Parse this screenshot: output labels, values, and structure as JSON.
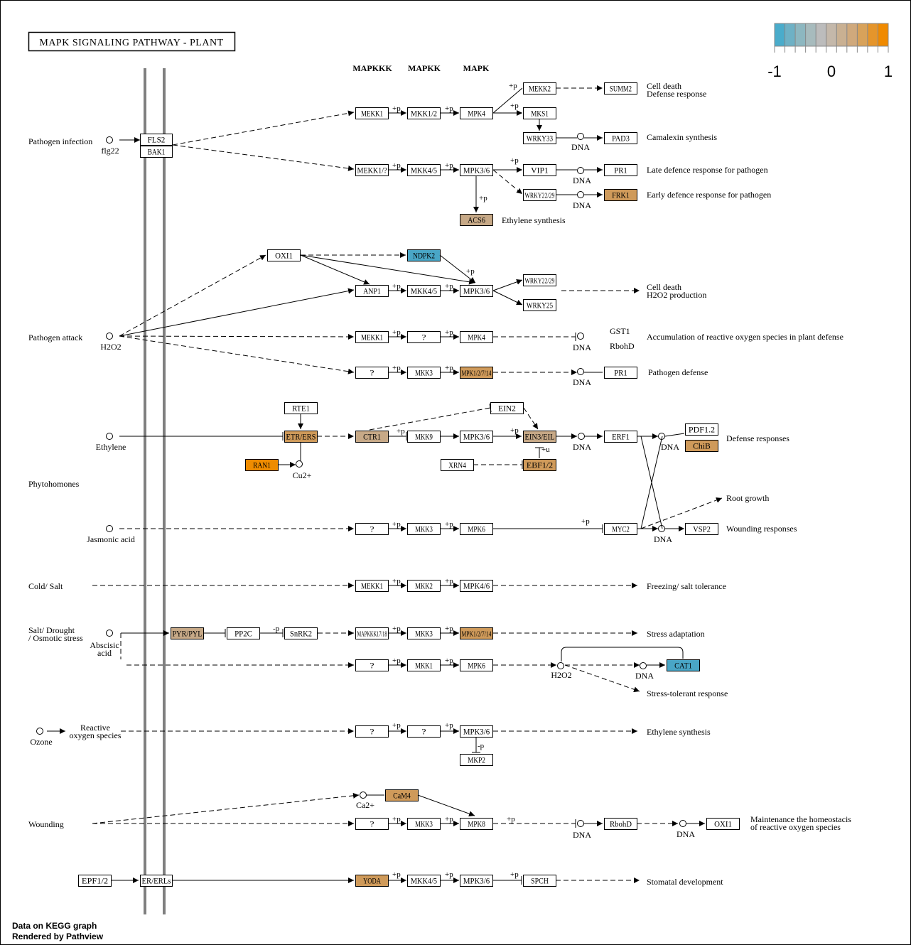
{
  "title": "MAPK SIGNALING PATHWAY - PLANT",
  "credits": [
    "Data on KEGG graph",
    "Rendered by Pathview"
  ],
  "legend": {
    "labels": [
      "-1",
      "0",
      "1"
    ],
    "colors": [
      "#4aaccb",
      "#6eb1c5",
      "#8db7c0",
      "#a7bbbd",
      "#bcbcbc",
      "#c4b8aa",
      "#c9b092",
      "#d0a97c",
      "#d8a25a",
      "#e5952b",
      "#f08a00"
    ]
  },
  "colors": {
    "blue": "#49a6c6",
    "tan": "#c7a987",
    "brown": "#cf9a5a",
    "orange": "#ef8c00",
    "rail": "#7f7f7f"
  },
  "headers": [
    "MAPKKK",
    "MAPKK",
    "MAPK"
  ],
  "nodes": [
    {
      "label": "FLS2",
      "fill": "#ffffff"
    },
    {
      "label": "BAK1",
      "fill": "#ffffff"
    },
    {
      "label": "MEKK1",
      "fill": "#ffffff"
    },
    {
      "label": "MKK1/2",
      "fill": "#ffffff"
    },
    {
      "label": "MPK4",
      "fill": "#ffffff"
    },
    {
      "label": "MEKK2",
      "fill": "#ffffff"
    },
    {
      "label": "SUMM2",
      "fill": "#ffffff"
    },
    {
      "label": "MKS1",
      "fill": "#ffffff"
    },
    {
      "label": "WRKY33",
      "fill": "#ffffff"
    },
    {
      "label": "PAD3",
      "fill": "#ffffff"
    },
    {
      "label": "MEKK1/?",
      "fill": "#ffffff"
    },
    {
      "label": "MKK4/5",
      "fill": "#ffffff"
    },
    {
      "label": "MPK3/6",
      "fill": "#ffffff"
    },
    {
      "label": "VIP1",
      "fill": "#ffffff"
    },
    {
      "label": "PR1",
      "fill": "#ffffff"
    },
    {
      "label": "WRKY22/29",
      "fill": "#ffffff"
    },
    {
      "label": "FRK1",
      "fill": "#cf9a5a"
    },
    {
      "label": "ACS6",
      "fill": "#c7a987"
    },
    {
      "label": "OXI1",
      "fill": "#ffffff"
    },
    {
      "label": "NDPK2",
      "fill": "#49a6c6"
    },
    {
      "label": "ANP1",
      "fill": "#ffffff"
    },
    {
      "label": "MKK4/5",
      "fill": "#ffffff"
    },
    {
      "label": "MPK3/6",
      "fill": "#ffffff"
    },
    {
      "label": "WRKY22/29",
      "fill": "#ffffff"
    },
    {
      "label": "WRKY25",
      "fill": "#ffffff"
    },
    {
      "label": "MEKK1",
      "fill": "#ffffff"
    },
    {
      "label": "?",
      "fill": "#ffffff"
    },
    {
      "label": "MPK4",
      "fill": "#ffffff"
    },
    {
      "label": "?",
      "fill": "#ffffff"
    },
    {
      "label": "MKK3",
      "fill": "#ffffff"
    },
    {
      "label": "MPK1/2/7/14",
      "fill": "#cf9a5a"
    },
    {
      "label": "PR1",
      "fill": "#ffffff"
    },
    {
      "label": "RTE1",
      "fill": "#ffffff"
    },
    {
      "label": "EIN2",
      "fill": "#ffffff"
    },
    {
      "label": "ETR/ERS",
      "fill": "#cf9a5a"
    },
    {
      "label": "CTR1",
      "fill": "#c7a987"
    },
    {
      "label": "MKK9",
      "fill": "#ffffff"
    },
    {
      "label": "MPK3/6",
      "fill": "#ffffff"
    },
    {
      "label": "EIN3/EIL",
      "fill": "#c7a987"
    },
    {
      "label": "ERF1",
      "fill": "#ffffff"
    },
    {
      "label": "PDF1.2",
      "fill": "#ffffff"
    },
    {
      "label": "ChiB",
      "fill": "#cf9a5a"
    },
    {
      "label": "RAN1",
      "fill": "#ef8c00"
    },
    {
      "label": "XRN4",
      "fill": "#ffffff"
    },
    {
      "label": "EBF1/2",
      "fill": "#cf9a5a"
    },
    {
      "label": "?",
      "fill": "#ffffff"
    },
    {
      "label": "MKK3",
      "fill": "#ffffff"
    },
    {
      "label": "MPK6",
      "fill": "#ffffff"
    },
    {
      "label": "MYC2",
      "fill": "#ffffff"
    },
    {
      "label": "VSP2",
      "fill": "#ffffff"
    },
    {
      "label": "MEKK1",
      "fill": "#ffffff"
    },
    {
      "label": "MKK2",
      "fill": "#ffffff"
    },
    {
      "label": "MPK4/6",
      "fill": "#ffffff"
    },
    {
      "label": "PYR/PYL",
      "fill": "#c7a987"
    },
    {
      "label": "PP2C",
      "fill": "#ffffff"
    },
    {
      "label": "SnRK2",
      "fill": "#ffffff"
    },
    {
      "label": "MAPKKK17/18",
      "fill": "#ffffff"
    },
    {
      "label": "MKK3",
      "fill": "#ffffff"
    },
    {
      "label": "MPK1/2/7/14",
      "fill": "#cf9a5a"
    },
    {
      "label": "?",
      "fill": "#ffffff"
    },
    {
      "label": "MKK1",
      "fill": "#ffffff"
    },
    {
      "label": "MPK6",
      "fill": "#ffffff"
    },
    {
      "label": "CAT1",
      "fill": "#49a6c6"
    },
    {
      "label": "?",
      "fill": "#ffffff"
    },
    {
      "label": "?",
      "fill": "#ffffff"
    },
    {
      "label": "MPK3/6",
      "fill": "#ffffff"
    },
    {
      "label": "MKP2",
      "fill": "#ffffff"
    },
    {
      "label": "CaM4",
      "fill": "#cf9a5a"
    },
    {
      "label": "?",
      "fill": "#ffffff"
    },
    {
      "label": "MKK3",
      "fill": "#ffffff"
    },
    {
      "label": "MPK8",
      "fill": "#ffffff"
    },
    {
      "label": "RbohD",
      "fill": "#ffffff"
    },
    {
      "label": "OXI1",
      "fill": "#ffffff"
    },
    {
      "label": "EPF1/2",
      "fill": "#ffffff"
    },
    {
      "label": "ER/ERLs",
      "fill": "#ffffff"
    },
    {
      "label": "YODA",
      "fill": "#cf9a5a"
    },
    {
      "label": "MKK4/5",
      "fill": "#ffffff"
    },
    {
      "label": "MPK3/6",
      "fill": "#ffffff"
    },
    {
      "label": "SPCH",
      "fill": "#ffffff"
    }
  ],
  "texts": [
    "Pathogen infection",
    "flg22",
    "Cell death",
    "Defense response",
    "Camalexin synthesis",
    "DNA",
    "Late defence response for pathogen",
    "DNA",
    "Early defence response for pathogen",
    "DNA",
    "Ethylene synthesis",
    "Cell death",
    "H2O2 production",
    "Pathogen attack",
    "H2O2",
    "GST1",
    "RbohD",
    "Accumulation of reactive oxygen species in plant defense",
    "DNA",
    "Pathogen defense",
    "DNA",
    "Ethylene",
    "Cu2+",
    "DNA",
    "DNA",
    "Defense responses",
    "Phytohomones",
    "Jasmonic acid",
    "Root growth",
    "Wounding responses",
    "DNA",
    "Cold/ Salt",
    "Freezing/ salt tolerance",
    "Salt/ Drought",
    "/ Osmotic stress",
    "Abscisic",
    "acid",
    "Stress adaptation",
    "H2O2",
    "DNA",
    "Stress-tolerant response",
    "Ozone",
    "Reactive",
    "oxygen species",
    "Ethylene synthesis",
    "Ca2+",
    "Wounding",
    "DNA",
    "DNA",
    "Maintenance the homeostacis",
    "of reactive oxygen species",
    "Stomatal development"
  ],
  "marks": [
    "+p",
    "+p",
    "+p",
    "+p",
    "+p",
    "+p",
    "+p",
    "+p",
    "+p",
    "+p",
    "+p",
    "+p",
    "+p",
    "+p",
    "+p",
    "+p",
    "+p",
    "+p",
    "+p",
    "+p",
    "+p",
    "+p",
    "+p",
    "+p",
    "+p",
    "+p",
    "+p",
    "+p",
    "+p",
    "+p",
    "+p",
    "+p",
    "+p",
    "+p",
    "+u",
    "-p",
    "-p"
  ]
}
